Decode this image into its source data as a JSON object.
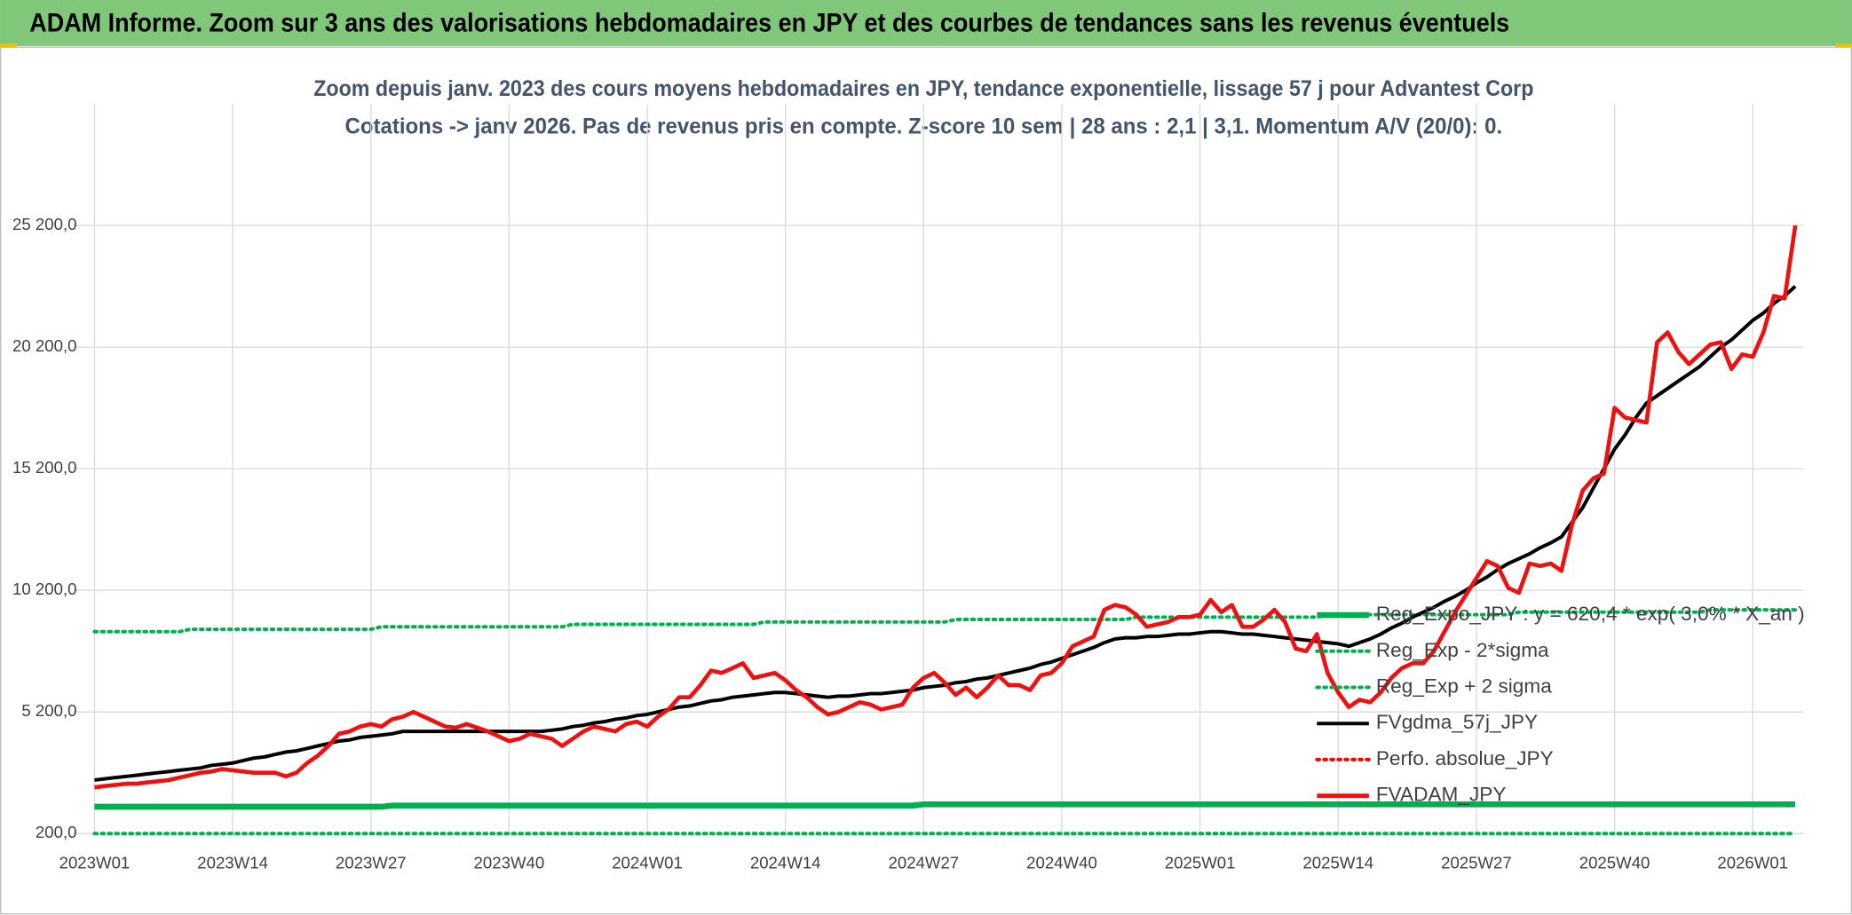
{
  "chart_data": {
    "type": "line",
    "header": "ADAM Informe. Zoom sur 3 ans des valorisations hebdomadaires en JPY et des courbes de tendances sans les revenus éventuels",
    "title": "Zoom depuis janv. 2023 des cours moyens hebdomadaires en JPY, tendance exponentielle, lissage 57 j pour Advantest Corp",
    "subtitle": "Cotations -> janv 2026. Pas de revenus pris en compte. Z-score 10 sem | 28 ans : 2,1  | 3,1. Momentum A/V (20/0): 0.",
    "grid": true,
    "legend": "right",
    "ylim": [
      200,
      30200
    ],
    "yticks": [
      {
        "value": 200,
        "label": "200,0"
      },
      {
        "value": 5200,
        "label": "5 200,0"
      },
      {
        "value": 10200,
        "label": "10 200,0"
      },
      {
        "value": 15200,
        "label": "15 200,0"
      },
      {
        "value": 20200,
        "label": "20 200,0"
      },
      {
        "value": 25200,
        "label": "25 200,0"
      }
    ],
    "categories": [
      "2023W01",
      null,
      null,
      null,
      null,
      null,
      null,
      null,
      null,
      null,
      null,
      null,
      null,
      "2023W14",
      null,
      null,
      null,
      null,
      null,
      null,
      null,
      null,
      null,
      null,
      null,
      null,
      "2023W27",
      null,
      null,
      null,
      null,
      null,
      null,
      null,
      null,
      null,
      null,
      null,
      null,
      "2023W40",
      null,
      null,
      null,
      null,
      null,
      null,
      null,
      null,
      null,
      null,
      null,
      null,
      "2024W01",
      null,
      null,
      null,
      null,
      null,
      null,
      null,
      null,
      null,
      null,
      null,
      null,
      "2024W14",
      null,
      null,
      null,
      null,
      null,
      null,
      null,
      null,
      null,
      null,
      null,
      null,
      "2024W27",
      null,
      null,
      null,
      null,
      null,
      null,
      null,
      null,
      null,
      null,
      null,
      null,
      "2024W40",
      null,
      null,
      null,
      null,
      null,
      null,
      null,
      null,
      null,
      null,
      null,
      null,
      "2025W01",
      null,
      null,
      null,
      null,
      null,
      null,
      null,
      null,
      null,
      null,
      null,
      null,
      "2025W14",
      null,
      null,
      null,
      null,
      null,
      null,
      null,
      null,
      null,
      null,
      null,
      null,
      "2025W27",
      null,
      null,
      null,
      null,
      null,
      null,
      null,
      null,
      null,
      null,
      null,
      null,
      "2025W40",
      null,
      null,
      null,
      null,
      null,
      null,
      null,
      null,
      null,
      null,
      null,
      null,
      "2026W01",
      null,
      null,
      null,
      null
    ],
    "series": [
      {
        "name": "Reg_Expo_JPY : y = 620,4 * exp( 3,0% * X_an )",
        "color": "#00b050",
        "style": "solid",
        "width": 5,
        "values": [
          1300,
          1300,
          1300,
          1300,
          1300,
          1300,
          1300,
          1300,
          1300,
          1300,
          1300,
          1300,
          1300,
          1300,
          1300,
          1300,
          1300,
          1300,
          1300,
          1300,
          1300,
          1300,
          1300,
          1300,
          1300,
          1300,
          1300,
          1300,
          1350,
          1350,
          1350,
          1350,
          1350,
          1350,
          1350,
          1350,
          1350,
          1350,
          1350,
          1350,
          1350,
          1350,
          1350,
          1350,
          1350,
          1350,
          1350,
          1350,
          1350,
          1350,
          1350,
          1350,
          1350,
          1350,
          1350,
          1350,
          1350,
          1350,
          1350,
          1350,
          1350,
          1350,
          1350,
          1350,
          1350,
          1350,
          1350,
          1350,
          1350,
          1350,
          1350,
          1350,
          1350,
          1350,
          1350,
          1350,
          1350,
          1350,
          1400,
          1400,
          1400,
          1400,
          1400,
          1400,
          1400,
          1400,
          1400,
          1400,
          1400,
          1400,
          1400,
          1400,
          1400,
          1400,
          1400,
          1400,
          1400,
          1400,
          1400,
          1400,
          1400,
          1400,
          1400,
          1400,
          1400,
          1400,
          1400,
          1400,
          1400,
          1400,
          1400,
          1400,
          1400,
          1400,
          1400,
          1400,
          1400,
          1400,
          1400,
          1400,
          1400,
          1400,
          1400,
          1400,
          1400,
          1400,
          1400,
          1400,
          1400,
          1400,
          1400,
          1400,
          1400,
          1400,
          1400,
          1400,
          1400,
          1400,
          1400,
          1400,
          1400,
          1400,
          1400,
          1400,
          1400,
          1400,
          1400,
          1400,
          1400,
          1400,
          1400,
          1400,
          1400,
          1400,
          1400,
          1400,
          1400,
          1400,
          1400,
          1400,
          1400
        ]
      },
      {
        "name": "Reg_Exp - 2*sigma",
        "color": "#00b050",
        "style": "dotted",
        "width": 3,
        "values": [
          200,
          200,
          200,
          200,
          200,
          200,
          200,
          200,
          200,
          200,
          200,
          200,
          200,
          200,
          200,
          200,
          200,
          200,
          200,
          200,
          200,
          200,
          200,
          200,
          200,
          200,
          200,
          200,
          200,
          200,
          200,
          200,
          200,
          200,
          200,
          200,
          200,
          200,
          200,
          200,
          200,
          200,
          200,
          200,
          200,
          200,
          200,
          200,
          200,
          200,
          200,
          200,
          200,
          200,
          200,
          200,
          200,
          200,
          200,
          200,
          200,
          200,
          200,
          200,
          200,
          200,
          200,
          200,
          200,
          200,
          200,
          200,
          200,
          200,
          200,
          200,
          200,
          200,
          200,
          200,
          200,
          200,
          200,
          200,
          200,
          200,
          200,
          200,
          200,
          200,
          200,
          200,
          200,
          200,
          200,
          200,
          200,
          200,
          200,
          200,
          200,
          200,
          200,
          200,
          200,
          200,
          200,
          200,
          200,
          200,
          200,
          200,
          200,
          200,
          200,
          200,
          200,
          200,
          200,
          200,
          200,
          200,
          200,
          200,
          200,
          200,
          200,
          200,
          200,
          200,
          200,
          200,
          200,
          200,
          200,
          200,
          200,
          200,
          200,
          200,
          200,
          200,
          200,
          200,
          200,
          200,
          200,
          200,
          200,
          200,
          200,
          200,
          200,
          200,
          200,
          200,
          200,
          200,
          200,
          200,
          200
        ]
      },
      {
        "name": "Reg_Exp + 2 sigma",
        "color": "#00b050",
        "style": "dotted",
        "width": 3,
        "values": [
          8500,
          8500,
          8500,
          8500,
          8500,
          8500,
          8500,
          8500,
          8500,
          8600,
          8600,
          8600,
          8600,
          8600,
          8600,
          8600,
          8600,
          8600,
          8600,
          8600,
          8600,
          8600,
          8600,
          8600,
          8600,
          8600,
          8600,
          8700,
          8700,
          8700,
          8700,
          8700,
          8700,
          8700,
          8700,
          8700,
          8700,
          8700,
          8700,
          8700,
          8700,
          8700,
          8700,
          8700,
          8700,
          8800,
          8800,
          8800,
          8800,
          8800,
          8800,
          8800,
          8800,
          8800,
          8800,
          8800,
          8800,
          8800,
          8800,
          8800,
          8800,
          8800,
          8800,
          8900,
          8900,
          8900,
          8900,
          8900,
          8900,
          8900,
          8900,
          8900,
          8900,
          8900,
          8900,
          8900,
          8900,
          8900,
          8900,
          8900,
          8900,
          9000,
          9000,
          9000,
          9000,
          9000,
          9000,
          9000,
          9000,
          9000,
          9000,
          9000,
          9000,
          9000,
          9000,
          9000,
          9000,
          9000,
          9100,
          9100,
          9100,
          9100,
          9100,
          9100,
          9100,
          9100,
          9100,
          9100,
          9100,
          9100,
          9100,
          9100,
          9100,
          9100,
          9100,
          9100,
          9200,
          9200,
          9200,
          9200,
          9200,
          9200,
          9200,
          9200,
          9200,
          9200,
          9200,
          9200,
          9200,
          9200,
          9200,
          9200,
          9200,
          9200,
          9300,
          9300,
          9300,
          9300,
          9300,
          9300,
          9300,
          9300,
          9300,
          9300,
          9300,
          9300,
          9300,
          9300,
          9300,
          9300,
          9300,
          9300,
          9400,
          9400,
          9400,
          9400,
          9400,
          9400,
          9400,
          9400,
          9400
        ]
      },
      {
        "name": "FVgdma_57j_JPY",
        "color": "#000000",
        "style": "solid",
        "width": 3,
        "values": [
          2400,
          2450,
          2500,
          2550,
          2600,
          2650,
          2700,
          2750,
          2800,
          2850,
          2900,
          3000,
          3050,
          3100,
          3200,
          3300,
          3350,
          3450,
          3550,
          3600,
          3700,
          3800,
          3900,
          4000,
          4050,
          4150,
          4200,
          4250,
          4300,
          4400,
          4400,
          4400,
          4400,
          4400,
          4400,
          4400,
          4400,
          4400,
          4400,
          4400,
          4400,
          4400,
          4400,
          4450,
          4500,
          4600,
          4650,
          4750,
          4800,
          4900,
          4950,
          5050,
          5100,
          5200,
          5300,
          5400,
          5450,
          5550,
          5650,
          5700,
          5800,
          5850,
          5900,
          5950,
          6000,
          6000,
          5950,
          5900,
          5850,
          5800,
          5850,
          5850,
          5900,
          5950,
          5950,
          6000,
          6050,
          6100,
          6200,
          6250,
          6300,
          6400,
          6450,
          6550,
          6600,
          6700,
          6800,
          6900,
          7000,
          7150,
          7250,
          7400,
          7550,
          7700,
          7850,
          8050,
          8200,
          8250,
          8250,
          8300,
          8300,
          8350,
          8400,
          8400,
          8450,
          8500,
          8500,
          8450,
          8400,
          8400,
          8350,
          8300,
          8250,
          8200,
          8150,
          8100,
          8050,
          8000,
          7900,
          8050,
          8200,
          8400,
          8650,
          8850,
          9100,
          9300,
          9500,
          9750,
          9950,
          10200,
          10500,
          10750,
          11050,
          11300,
          11500,
          11700,
          11950,
          12150,
          12400,
          13000,
          13600,
          14400,
          15200,
          16000,
          16600,
          17300,
          17900,
          18200,
          18500,
          18800,
          19100,
          19400,
          19800,
          20200,
          20500,
          20900,
          21300,
          21600,
          22000,
          22300,
          22700
        ]
      },
      {
        "name": "Perfo. absolue_JPY",
        "color": "#ff0000",
        "style": "dotted",
        "width": 3,
        "values": [
          null,
          null,
          null,
          null,
          null,
          null,
          null,
          null,
          null,
          null,
          null,
          null,
          null,
          null,
          null,
          null,
          null,
          null,
          null,
          null,
          null,
          null,
          null,
          null,
          null,
          null,
          null,
          null,
          null,
          null,
          null,
          null,
          null,
          null,
          null,
          null,
          null,
          null,
          null,
          null,
          null,
          null,
          null,
          null,
          null,
          null,
          null,
          null,
          null,
          null,
          null,
          null,
          null,
          null,
          null,
          null,
          null,
          null,
          null,
          null,
          null,
          null,
          null,
          null,
          null,
          null,
          null,
          null,
          null,
          null,
          null,
          null,
          null,
          null,
          null,
          null,
          null,
          null,
          null,
          null,
          null,
          null,
          null,
          null,
          null,
          null,
          null,
          null,
          null,
          null,
          null,
          null,
          null,
          null,
          null,
          null,
          null,
          null,
          null,
          null,
          null,
          null,
          null,
          null,
          null,
          null,
          null,
          null,
          null,
          null,
          null,
          null,
          null,
          null,
          null,
          null,
          null,
          null,
          null,
          null,
          null,
          null,
          null,
          null,
          null,
          null,
          null,
          null,
          null,
          null,
          null,
          null,
          null,
          null,
          null,
          null,
          null,
          null,
          null,
          null,
          null,
          null,
          null,
          null,
          null,
          null,
          null,
          null,
          null,
          null,
          null,
          null,
          null,
          null,
          null,
          null,
          null,
          null,
          null,
          null,
          null
        ]
      },
      {
        "name": "FVADAM_JPY",
        "color": "#ee1111",
        "style": "solid",
        "width": 3.5,
        "values": [
          2100,
          2150,
          2200,
          2250,
          2250,
          2300,
          2350,
          2400,
          2500,
          2600,
          2700,
          2750,
          2850,
          2800,
          2750,
          2700,
          2700,
          2700,
          2550,
          2700,
          3100,
          3400,
          3800,
          4300,
          4400,
          4600,
          4700,
          4600,
          4900,
          5000,
          5200,
          5000,
          4800,
          4600,
          4550,
          4700,
          4550,
          4400,
          4200,
          4000,
          4100,
          4300,
          4200,
          4100,
          3800,
          4100,
          4400,
          4600,
          4500,
          4400,
          4700,
          4800,
          4600,
          5000,
          5300,
          5800,
          5800,
          6300,
          6900,
          6800,
          7000,
          7200,
          6600,
          6700,
          6800,
          6500,
          6100,
          5800,
          5400,
          5100,
          5200,
          5400,
          5600,
          5500,
          5300,
          5400,
          5500,
          6200,
          6600,
          6800,
          6400,
          5900,
          6200,
          5800,
          6200,
          6700,
          6300,
          6300,
          6100,
          6700,
          6800,
          7200,
          7900,
          8100,
          8300,
          9400,
          9600,
          9500,
          9200,
          8700,
          8800,
          8900,
          9100,
          9100,
          9200,
          9800,
          9300,
          9600,
          8700,
          8700,
          9000,
          9400,
          8900,
          7800,
          7700,
          8400,
          6800,
          6000,
          5400,
          5700,
          5600,
          6000,
          6600,
          7000,
          7200,
          7200,
          7700,
          8500,
          9300,
          10000,
          10700,
          11400,
          11200,
          10300,
          10100,
          11300,
          11200,
          11300,
          11000,
          12900,
          14300,
          14800,
          15000,
          17700,
          17300,
          17200,
          17100,
          20400,
          20800,
          20000,
          19500,
          19900,
          20300,
          20400,
          19300,
          19900,
          19800,
          20800,
          22300,
          22200,
          25200
        ]
      }
    ]
  }
}
